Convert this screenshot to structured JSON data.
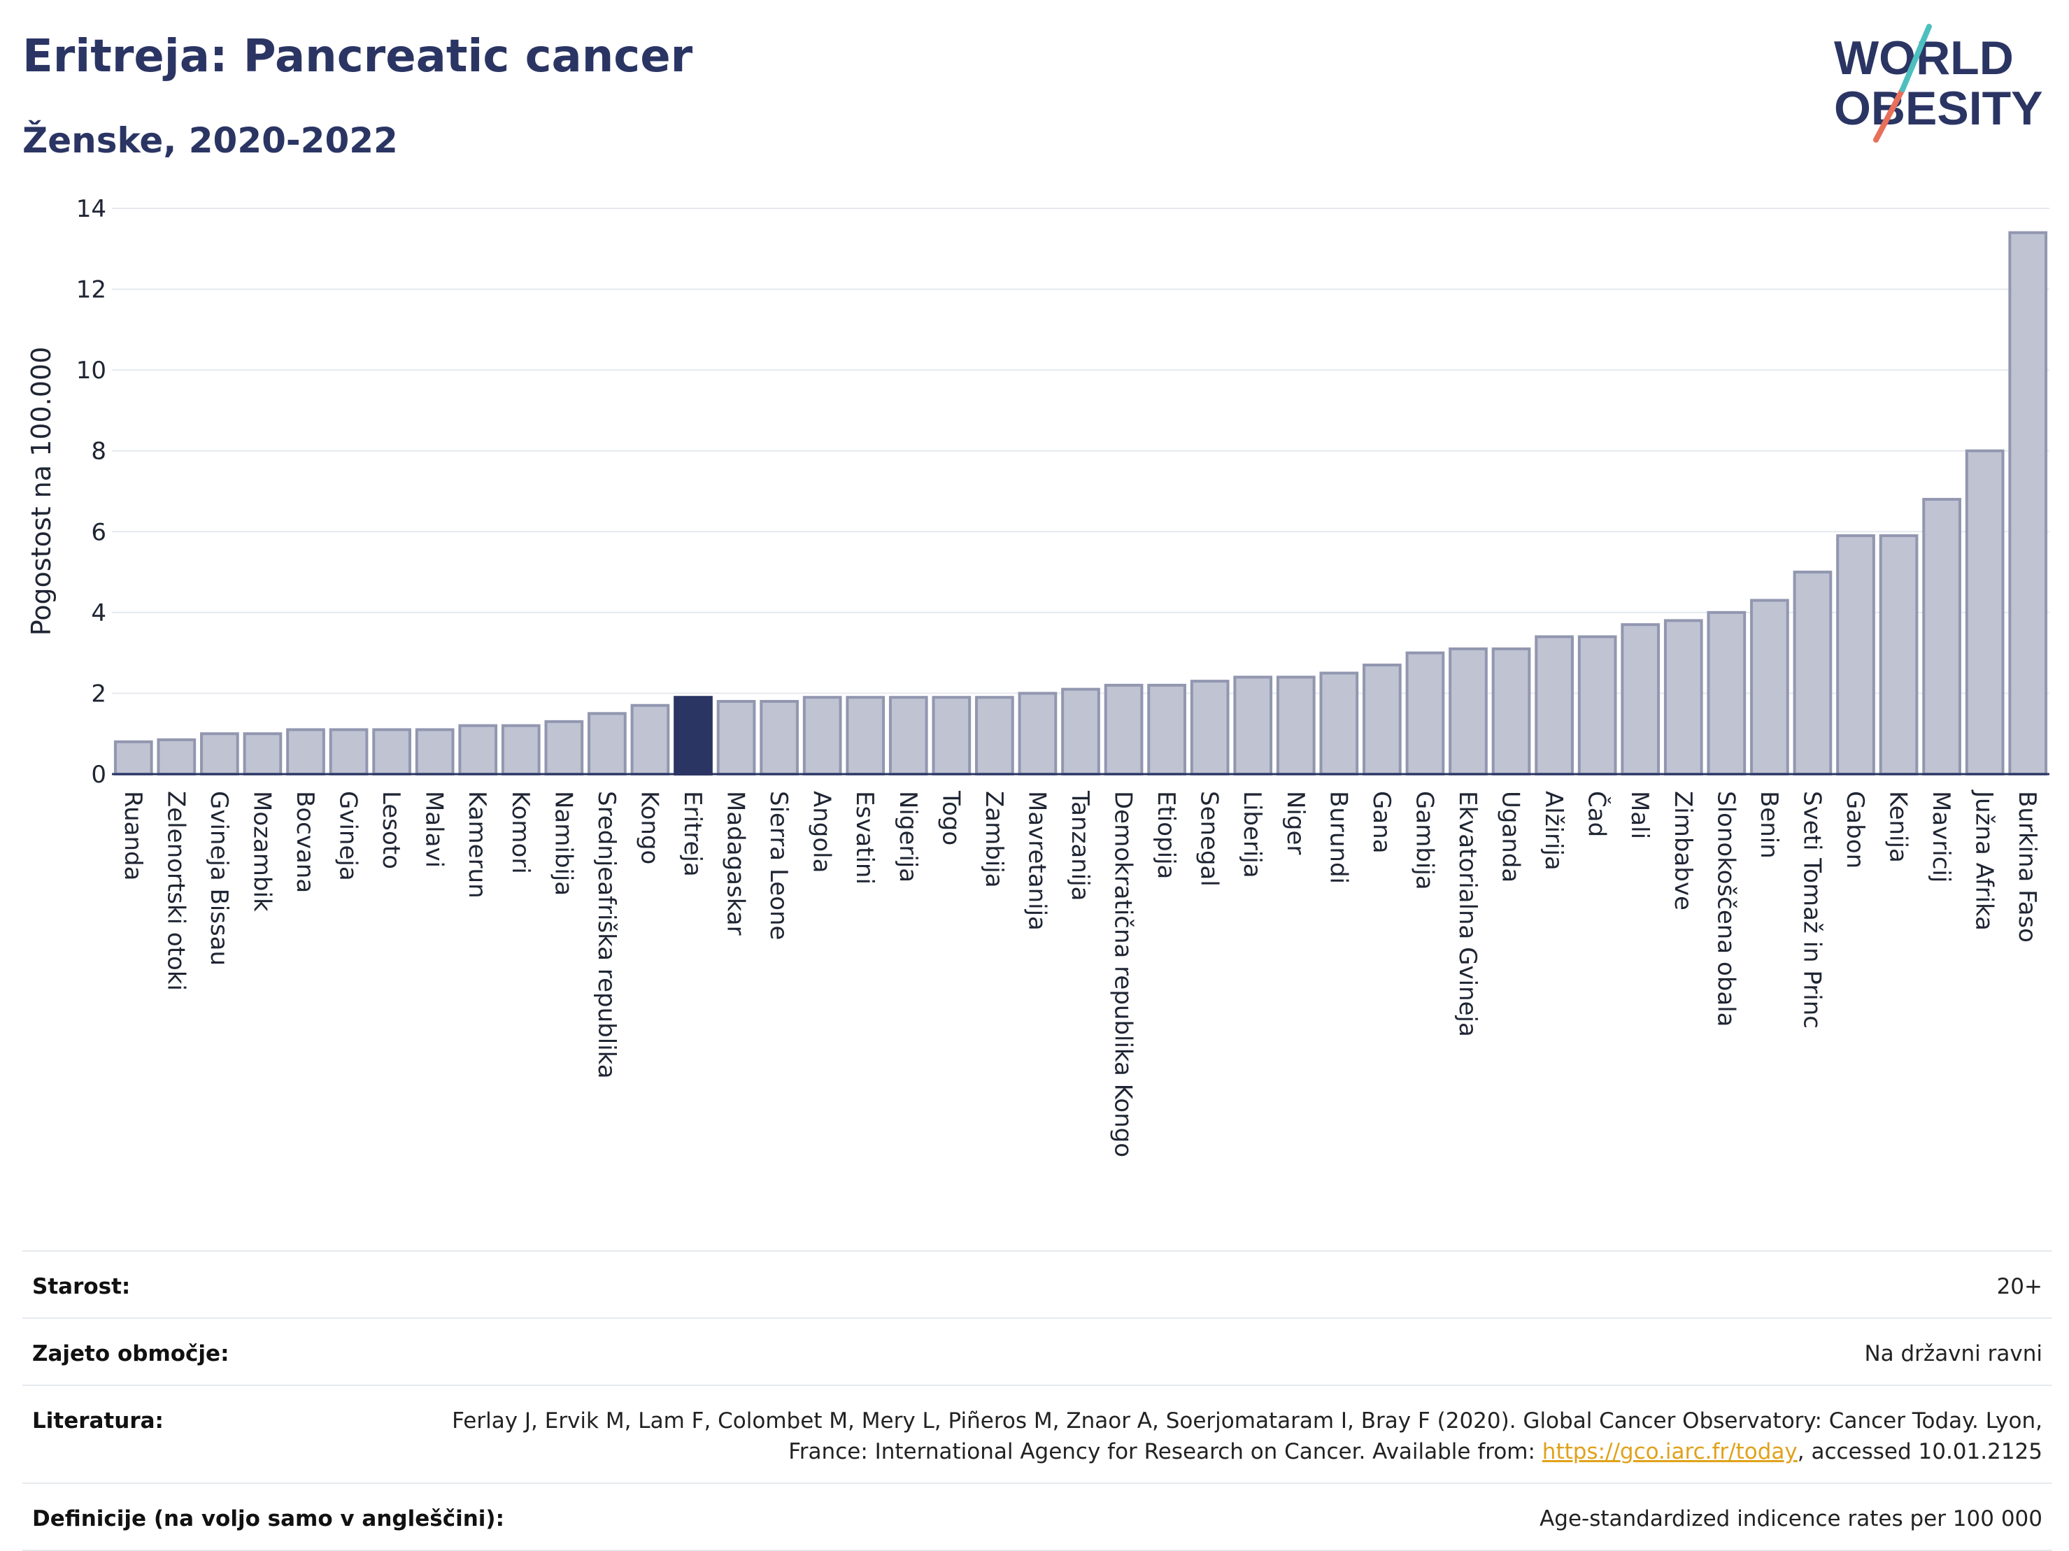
{
  "header": {
    "title": "Eritreja: Pancreatic cancer",
    "subtitle": "Ženske, 2020-2022"
  },
  "logo": {
    "line1": "WORLD",
    "line2": "OBESITY",
    "colors": {
      "text": "#2b3563",
      "slash_teal": "#4dbfbf",
      "slash_coral": "#e8705a"
    }
  },
  "chart_data": {
    "type": "bar",
    "title": "",
    "ylabel": "Pogostost na 100.000",
    "xlabel": "",
    "ylim": [
      0,
      14
    ],
    "yticks": [
      0,
      2,
      4,
      6,
      8,
      10,
      12,
      14
    ],
    "grid": true,
    "highlight": "Eritreja",
    "colors": {
      "bar": "#bfc3d2",
      "bar_stroke": "#9297b0",
      "highlight": "#2b3563"
    },
    "categories": [
      "Ruanda",
      "Zelenortski otoki",
      "Gvineja Bissau",
      "Mozambik",
      "Bocvana",
      "Gvineja",
      "Lesoto",
      "Malavi",
      "Kamerun",
      "Komori",
      "Namibija",
      "Srednjeafriška republika",
      "Kongo",
      "Eritreja",
      "Madagaskar",
      "Sierra Leone",
      "Angola",
      "Esvatini",
      "Nigerija",
      "Togo",
      "Zambija",
      "Mavretanija",
      "Tanzanija",
      "Demokratična republika Kongo",
      "Etiopija",
      "Senegal",
      "Liberija",
      "Niger",
      "Burundi",
      "Gana",
      "Gambija",
      "Ekvatorialna Gvineja",
      "Uganda",
      "Alžirija",
      "Čad",
      "Mali",
      "Zimbabve",
      "Slonokoščena obala",
      "Benin",
      "Sveti Tomaž in Princ",
      "Gabon",
      "Kenija",
      "Mavricij",
      "Južna Afrika",
      "Burkina Faso"
    ],
    "values": [
      0.8,
      0.85,
      1.0,
      1.0,
      1.1,
      1.1,
      1.1,
      1.1,
      1.2,
      1.2,
      1.3,
      1.5,
      1.7,
      1.9,
      1.8,
      1.8,
      1.9,
      1.9,
      1.9,
      1.9,
      1.9,
      2.0,
      2.1,
      2.2,
      2.2,
      2.3,
      2.4,
      2.4,
      2.5,
      2.7,
      3.0,
      3.1,
      3.1,
      3.4,
      3.4,
      3.7,
      3.8,
      4.0,
      4.3,
      5.0,
      5.9,
      5.9,
      6.8,
      8.0,
      13.4
    ]
  },
  "info": {
    "rows": [
      {
        "key": "Starost:",
        "value": "20+"
      },
      {
        "key": "Zajeto območje:",
        "value": "Na državni ravni"
      },
      {
        "key": "Literatura:",
        "value_pre": "Ferlay J, Ervik M, Lam F, Colombet M, Mery L, Piñeros M, Znaor A, Soerjomataram I, Bray F (2020). Global Cancer Observatory: Cancer Today. Lyon, France: International Agency for Research on Cancer. Available from: ",
        "link": "https://gco.iarc.fr/today",
        "value_post": ", accessed 10.01.2125"
      },
      {
        "key": "Definicije (na voljo samo v angleščini):",
        "value": "Age-standardized indicence rates per 100 000"
      }
    ]
  }
}
